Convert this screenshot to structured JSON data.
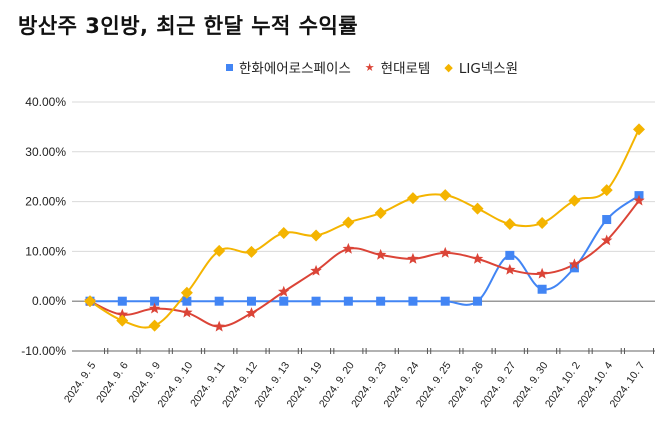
{
  "chart_data": {
    "type": "line",
    "title": "방산주 3인방, 최근 한달 누적 수익률",
    "xlabel": "",
    "ylabel": "",
    "ylim": [
      -10,
      40
    ],
    "yticks": [
      "40.00%",
      "30.00%",
      "20.00%",
      "10.00%",
      "0.00%",
      "-10.00%"
    ],
    "ytick_values": [
      40,
      30,
      20,
      10,
      0,
      -10
    ],
    "grid": true,
    "legend_position": "top-right",
    "categories": [
      "2024. 9. 5",
      "2024. 9. 6",
      "2024. 9. 9",
      "2024. 9. 10",
      "2024. 9. 11",
      "2024. 9. 12",
      "2024. 9. 13",
      "2024. 9. 19",
      "2024. 9. 20",
      "2024. 9. 23",
      "2024. 9. 24",
      "2024. 9. 25",
      "2024. 9. 26",
      "2024. 9. 27",
      "2024. 9. 30",
      "2024. 10. 2",
      "2024. 10. 4",
      "2024. 10. 7"
    ],
    "series": [
      {
        "name": "한화에어로스페이스",
        "color": "#4285f4",
        "marker": "square",
        "values": [
          0,
          0,
          0,
          0,
          0,
          0,
          0,
          0,
          0,
          0,
          0,
          0,
          0,
          9.2,
          2.4,
          6.7,
          16.4,
          21.2
        ]
      },
      {
        "name": "현대로템",
        "color": "#db4437",
        "marker": "star",
        "values": [
          0,
          -2.7,
          -1.5,
          -2.3,
          -5.1,
          -2.4,
          1.9,
          6.1,
          10.5,
          9.3,
          8.5,
          9.7,
          8.5,
          6.3,
          5.5,
          7.4,
          12.2,
          20.2
        ]
      },
      {
        "name": "LIG넥스원",
        "color": "#f4b400",
        "marker": "diamond",
        "values": [
          0,
          -3.9,
          -4.9,
          1.7,
          10.1,
          9.9,
          13.7,
          13.2,
          15.8,
          17.7,
          20.7,
          21.3,
          18.6,
          15.5,
          15.7,
          20.2,
          22.3,
          34.5
        ]
      }
    ]
  },
  "legend": {
    "items": [
      {
        "label": "한화에어로스페이스",
        "icon": "square-icon",
        "color": "#4285f4"
      },
      {
        "label": "현대로템",
        "icon": "star-icon",
        "color": "#db4437"
      },
      {
        "label": "LIG넥스원",
        "icon": "diamond-icon",
        "color": "#f4b400"
      }
    ]
  }
}
